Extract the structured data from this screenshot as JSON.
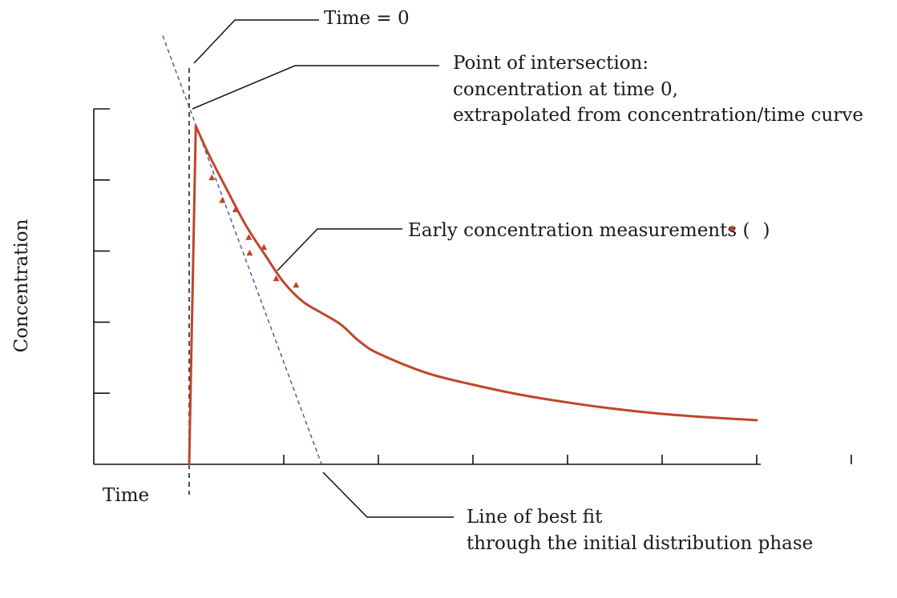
{
  "chart_data": {
    "type": "line",
    "title": "",
    "xlabel": "Time",
    "ylabel": "Concentration",
    "xlim": [
      0,
      7
    ],
    "ylim": [
      0,
      5
    ],
    "grid": false,
    "series": [
      {
        "name": "",
        "color": "#c0452b",
        "x": [
          0,
          0.07,
          0.2,
          0.4,
          0.6,
          0.8,
          1.0,
          1.2,
          1.4,
          1.6,
          1.8,
          2.0,
          2.5,
          3.0,
          3.5,
          4.0,
          4.5,
          5.0,
          5.5,
          6.0
        ],
        "values": [
          0,
          4.76,
          4.38,
          3.86,
          3.36,
          2.95,
          2.56,
          2.29,
          2.13,
          1.97,
          1.73,
          1.56,
          1.29,
          1.12,
          0.98,
          0.87,
          0.78,
          0.71,
          0.66,
          0.62
        ]
      }
    ],
    "markers": {
      "name": "Early concentration measurements",
      "color": "#c0452b",
      "shape": "triangle",
      "x": [
        0.24,
        0.35,
        0.49,
        0.63,
        0.64,
        0.79,
        0.92,
        1.13
      ],
      "values": [
        4.03,
        3.71,
        3.58,
        3.19,
        2.97,
        3.05,
        2.61,
        2.52
      ]
    },
    "fit_line": {
      "name": "Line of best fit",
      "color": "#4a4f9a",
      "style": "dashed",
      "x": [
        -0.28,
        1.4
      ],
      "values": [
        6.03,
        0
      ]
    },
    "time_zero_line": {
      "x": 0,
      "style": "dashed",
      "color": "#222222"
    }
  },
  "annotations": {
    "time_zero": "Time = 0",
    "intersection_line1": "Point of intersection:",
    "intersection_line2": "concentration at time 0,",
    "intersection_line3": "extrapolated from concentration/time curve",
    "early_measurements_text": "Early concentration measurements (",
    "early_measurements_close": ")",
    "best_fit_line1": "Line of best fit",
    "best_fit_line2": "through the initial distribution phase"
  }
}
